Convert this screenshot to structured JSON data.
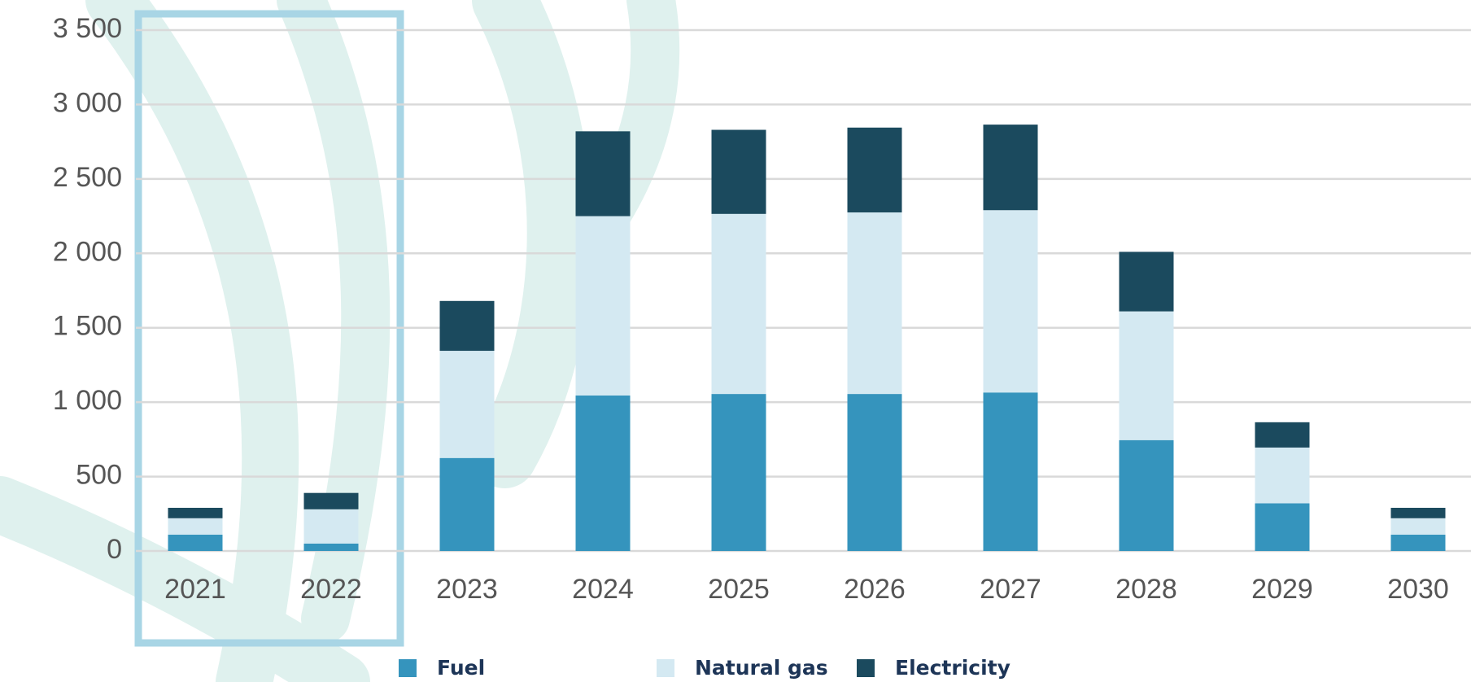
{
  "chart_data": {
    "type": "stacked_bar",
    "categories": [
      "2021",
      "2022",
      "2023",
      "2024",
      "2025",
      "2026",
      "2027",
      "2028",
      "2029",
      "2030"
    ],
    "series": [
      {
        "name": "Fuel",
        "color": "#3594bd",
        "values": [
          110,
          50,
          625,
          1045,
          1055,
          1055,
          1065,
          745,
          320,
          110
        ]
      },
      {
        "name": "Natural gas",
        "color": "#d4e9f2",
        "values": [
          110,
          230,
          720,
          1205,
          1210,
          1220,
          1225,
          865,
          375,
          110
        ]
      },
      {
        "name": "Electricity",
        "color": "#1b4a5e",
        "values": [
          70,
          110,
          335,
          570,
          565,
          570,
          575,
          400,
          170,
          70
        ]
      }
    ],
    "ylim": [
      0,
      3500
    ],
    "yticks": [
      0,
      500,
      {
        "value": 1000,
        "label": "1 000"
      },
      {
        "value": 1500,
        "label": "1 500"
      },
      {
        "value": 2000,
        "label": "2 000"
      },
      {
        "value": 2500,
        "label": "2 500"
      },
      {
        "value": 3000,
        "label": "3 000"
      },
      {
        "value": 3500,
        "label": "3 500"
      }
    ],
    "grid": true
  }
}
